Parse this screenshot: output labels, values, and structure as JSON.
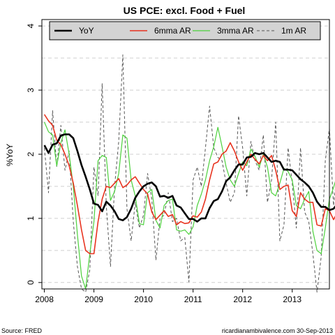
{
  "chart_data": {
    "type": "line",
    "title": "US PCE: excl. Food + Fuel",
    "xlabel": "",
    "ylabel": "%YoY",
    "xlim": [
      2007.95,
      2013.75
    ],
    "ylim": [
      -0.1,
      4.1
    ],
    "x_ticks": [
      2008,
      2009,
      2010,
      2011,
      2012,
      2013
    ],
    "x_tick_labels": [
      "2008",
      "2009",
      "2010",
      "2011",
      "2012",
      "2013"
    ],
    "y_ticks": [
      0,
      1,
      2,
      3,
      4
    ],
    "y_tick_labels": [
      "0",
      "1",
      "2",
      "3",
      "4"
    ],
    "grid": "horizontal dashed",
    "legend_position": "top",
    "x_start": 2008.0,
    "x_step": 0.0833333,
    "series": [
      {
        "name": "YoY",
        "color": "#000000",
        "stroke_width": 2.6,
        "dash": "",
        "values": [
          2.14,
          2.02,
          2.15,
          2.17,
          2.29,
          2.31,
          2.31,
          2.25,
          2.05,
          1.83,
          1.65,
          1.45,
          1.23,
          1.21,
          1.11,
          1.26,
          1.2,
          1.11,
          0.99,
          0.97,
          1.02,
          1.15,
          1.32,
          1.42,
          1.5,
          1.54,
          1.56,
          1.5,
          1.34,
          1.35,
          1.32,
          1.35,
          1.2,
          1.17,
          1.08,
          0.99,
          0.99,
          0.95,
          1.0,
          1.0,
          1.16,
          1.27,
          1.3,
          1.42,
          1.58,
          1.64,
          1.75,
          1.84,
          1.84,
          1.95,
          1.96,
          2.02,
          2.0,
          2.02,
          1.95,
          1.88,
          1.9,
          1.88,
          1.76,
          1.76,
          1.75,
          1.68,
          1.61,
          1.56,
          1.5,
          1.4,
          1.26,
          1.18,
          1.18,
          1.13,
          1.15,
          1.23
        ]
      },
      {
        "name": "6mma AR",
        "color": "#e8331f",
        "stroke_width": 1.6,
        "dash": "",
        "values": [
          2.62,
          2.52,
          2.45,
          2.22,
          2.15,
          2.0,
          1.82,
          1.55,
          1.2,
          0.82,
          0.5,
          0.45,
          0.45,
          0.95,
          1.3,
          1.5,
          1.48,
          1.55,
          1.62,
          1.48,
          1.52,
          1.6,
          1.65,
          1.55,
          1.45,
          1.38,
          1.1,
          0.98,
          1.05,
          1.12,
          1.03,
          1.06,
          0.9,
          0.95,
          0.92,
          0.93,
          1.04,
          1.02,
          1.1,
          1.3,
          1.6,
          1.85,
          1.88,
          2.0,
          2.05,
          2.18,
          2.05,
          1.88,
          1.75,
          1.88,
          2.0,
          1.92,
          1.85,
          1.98,
          1.9,
          1.98,
          1.75,
          1.45,
          1.5,
          1.52,
          1.12,
          1.03,
          1.4,
          1.3,
          1.25,
          1.25,
          0.9,
          0.88,
          1.15,
          1.12,
          0.98,
          1.1
        ]
      },
      {
        "name": "3mma AR",
        "color": "#4cd13c",
        "stroke_width": 1.2,
        "dash": "",
        "values": [
          2.5,
          2.35,
          2.3,
          1.82,
          2.18,
          2.38,
          2.0,
          1.5,
          0.75,
          0.1,
          -0.1,
          0.45,
          0.95,
          1.9,
          1.98,
          1.95,
          1.28,
          1.42,
          1.7,
          2.3,
          2.25,
          1.6,
          1.35,
          0.92,
          0.9,
          1.4,
          1.45,
          0.97,
          0.85,
          1.2,
          1.28,
          1.3,
          0.82,
          0.8,
          0.82,
          0.75,
          0.87,
          1.2,
          1.38,
          1.6,
          1.9,
          2.12,
          2.42,
          2.12,
          1.8,
          1.6,
          1.5,
          1.7,
          1.88,
          1.82,
          2.08,
          1.97,
          1.8,
          2.0,
          1.8,
          1.4,
          1.35,
          1.55,
          1.78,
          1.73,
          1.6,
          1.2,
          1.15,
          1.3,
          1.42,
          0.8,
          0.5,
          0.45,
          0.85,
          1.3,
          1.48,
          1.7
        ]
      },
      {
        "name": "1m AR",
        "color": "#555555",
        "stroke_width": 1.0,
        "dash": "4,3",
        "values": [
          2.1,
          1.4,
          2.68,
          1.8,
          2.45,
          1.75,
          2.05,
          0.95,
          0.25,
          -0.1,
          -0.15,
          0.2,
          1.8,
          1.35,
          3.1,
          1.2,
          0.25,
          1.5,
          2.2,
          3.55,
          1.15,
          0.65,
          1.25,
          0.85,
          1.05,
          1.7,
          1.3,
          0.35,
          1.0,
          1.05,
          1.4,
          0.95,
          1.0,
          0.65,
          0.7,
          0.01,
          1.6,
          1.8,
          1.5,
          2.1,
          2.75,
          2.1,
          1.95,
          1.9,
          1.55,
          1.25,
          1.4,
          2.6,
          2.1,
          1.35,
          2.2,
          1.9,
          1.75,
          2.3,
          1.25,
          1.6,
          2.5,
          0.65,
          0.9,
          2.1,
          1.55,
          0.85,
          2.1,
          1.1,
          0.95,
          0.45,
          -0.15,
          0.4,
          1.9,
          2.4,
          1.2,
          1.8
        ]
      }
    ]
  },
  "footer": {
    "source": "Source: FRED",
    "credit": "ricardianambivalence.com    30-Sep-2013"
  }
}
